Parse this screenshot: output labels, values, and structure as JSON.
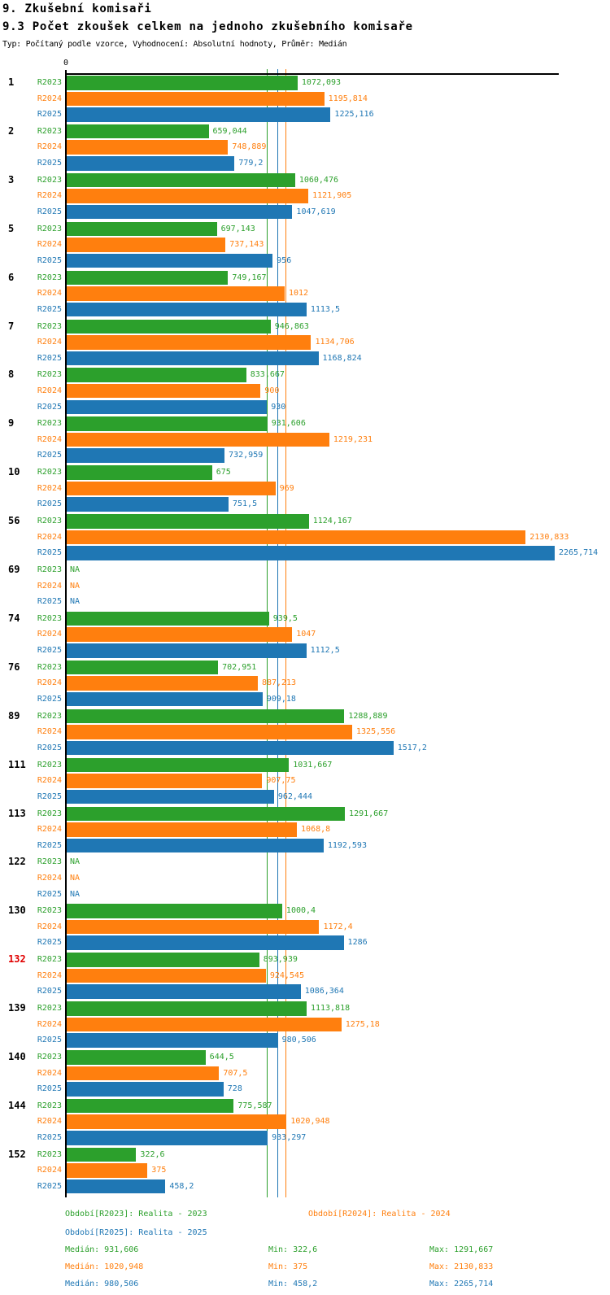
{
  "header": {
    "title": "9. Zkušební komisaři",
    "subtitle": "9.3 Počet zkoušek celkem na jednoho zkušebního komisaře",
    "meta": "Typ: Počítaný podle vzorce, Vyhodnocení: Absolutní hodnoty, Průměr: Medián"
  },
  "chart_data": {
    "type": "bar",
    "orientation": "horizontal",
    "axis_zero_label": "0",
    "xlim": [
      0,
      2265.714
    ],
    "grid": "off",
    "legend_position": "bottom",
    "series_labels": [
      "R2023",
      "R2024",
      "R2025"
    ],
    "series_colors": {
      "R2023": "#2ca02c",
      "R2024": "#ff7f0e",
      "R2025": "#1f77b4"
    },
    "medians": [
      {
        "series": "R2023",
        "value": 931.606
      },
      {
        "series": "R2025",
        "value": 980.506
      },
      {
        "series": "R2024",
        "value": 1020.948
      }
    ],
    "groups": [
      {
        "label": "1",
        "values": [
          1072.093,
          1195.814,
          1225.116
        ],
        "displays": [
          "1072,093",
          "1195,814",
          "1225,116"
        ]
      },
      {
        "label": "2",
        "values": [
          659.044,
          748.889,
          779.2
        ],
        "displays": [
          "659,044",
          "748,889",
          "779,2"
        ]
      },
      {
        "label": "3",
        "values": [
          1060.476,
          1121.905,
          1047.619
        ],
        "displays": [
          "1060,476",
          "1121,905",
          "1047,619"
        ]
      },
      {
        "label": "5",
        "values": [
          697.143,
          737.143,
          956
        ],
        "displays": [
          "697,143",
          "737,143",
          "956"
        ]
      },
      {
        "label": "6",
        "values": [
          749.167,
          1012,
          1113.5
        ],
        "displays": [
          "749,167",
          "1012",
          "1113,5"
        ]
      },
      {
        "label": "7",
        "values": [
          946.863,
          1134.706,
          1168.824
        ],
        "displays": [
          "946,863",
          "1134,706",
          "1168,824"
        ]
      },
      {
        "label": "8",
        "values": [
          833.667,
          900,
          930
        ],
        "displays": [
          "833,667",
          "900",
          "930"
        ]
      },
      {
        "label": "9",
        "values": [
          931.606,
          1219.231,
          732.959
        ],
        "displays": [
          "931,606",
          "1219,231",
          "732,959"
        ]
      },
      {
        "label": "10",
        "values": [
          675,
          969,
          751.5
        ],
        "displays": [
          "675",
          "969",
          "751,5"
        ]
      },
      {
        "label": "56",
        "values": [
          1124.167,
          2130.833,
          2265.714
        ],
        "displays": [
          "1124,167",
          "2130,833",
          "2265,714"
        ]
      },
      {
        "label": "69",
        "values": [
          null,
          null,
          null
        ],
        "displays": [
          "NA",
          "NA",
          "NA"
        ]
      },
      {
        "label": "74",
        "values": [
          939.5,
          1047,
          1112.5
        ],
        "displays": [
          "939,5",
          "1047",
          "1112,5"
        ]
      },
      {
        "label": "76",
        "values": [
          702.951,
          887.213,
          909.18
        ],
        "displays": [
          "702,951",
          "887,213",
          "909,18"
        ]
      },
      {
        "label": "89",
        "values": [
          1288.889,
          1325.556,
          1517.2
        ],
        "displays": [
          "1288,889",
          "1325,556",
          "1517,2"
        ]
      },
      {
        "label": "111",
        "values": [
          1031.667,
          907.75,
          962.444
        ],
        "displays": [
          "1031,667",
          "907,75",
          "962,444"
        ]
      },
      {
        "label": "113",
        "values": [
          1291.667,
          1068.8,
          1192.593
        ],
        "displays": [
          "1291,667",
          "1068,8",
          "1192,593"
        ]
      },
      {
        "label": "122",
        "values": [
          null,
          null,
          null
        ],
        "displays": [
          "NA",
          "NA",
          "NA"
        ]
      },
      {
        "label": "130",
        "values": [
          1000.4,
          1172.4,
          1286
        ],
        "displays": [
          "1000,4",
          "1172,4",
          "1286"
        ]
      },
      {
        "label": "132",
        "label_color": "#e00000",
        "values": [
          893.939,
          924.545,
          1086.364
        ],
        "displays": [
          "893,939",
          "924,545",
          "1086,364"
        ]
      },
      {
        "label": "139",
        "values": [
          1113.818,
          1275.18,
          980.506
        ],
        "displays": [
          "1113,818",
          "1275,18",
          "980,506"
        ]
      },
      {
        "label": "140",
        "values": [
          644.5,
          707.5,
          728
        ],
        "displays": [
          "644,5",
          "707,5",
          "728"
        ]
      },
      {
        "label": "144",
        "values": [
          775.587,
          1020.948,
          933.297
        ],
        "displays": [
          "775,587",
          "1020,948",
          "933,297"
        ]
      },
      {
        "label": "152",
        "values": [
          322.6,
          375,
          458.2
        ],
        "displays": [
          "322,6",
          "375",
          "458,2"
        ]
      }
    ]
  },
  "legend": [
    {
      "series": "R2023",
      "label": "Období[R2023]: Realita - 2023",
      "row": 0,
      "col": 0
    },
    {
      "series": "R2024",
      "label": "Období[R2024]: Realita - 2024",
      "row": 0,
      "col": 1
    },
    {
      "series": "R2025",
      "label": "Období[R2025]: Realita - 2025",
      "row": 1,
      "col": 0
    }
  ],
  "stats": [
    {
      "series": "R2023",
      "median": "Medián: 931,606",
      "min": "Min: 322,6",
      "max": "Max: 1291,667"
    },
    {
      "series": "R2024",
      "median": "Medián: 1020,948",
      "min": "Min: 375",
      "max": "Max: 2130,833"
    },
    {
      "series": "R2025",
      "median": "Medián: 980,506",
      "min": "Min: 458,2",
      "max": "Max: 2265,714"
    }
  ]
}
